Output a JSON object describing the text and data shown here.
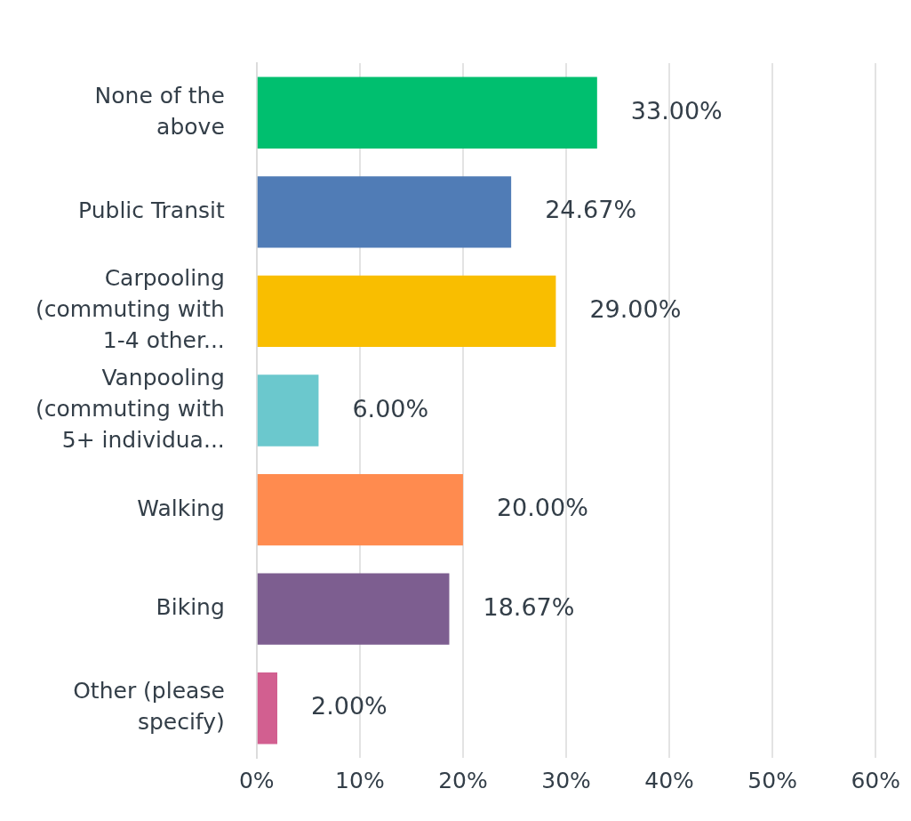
{
  "chart_data": {
    "type": "bar",
    "orientation": "horizontal",
    "categories": [
      "None of the above",
      "Public Transit",
      "Carpooling (commuting with 1-4 other...",
      "Vanpooling (commuting with 5+ individua...",
      "Walking",
      "Biking",
      "Other (please specify)"
    ],
    "values": [
      33,
      24.67,
      29,
      6,
      20,
      18.67,
      2
    ],
    "colors": [
      "#00bf6f",
      "#507cb6",
      "#f9be00",
      "#6bc8cd",
      "#ff8b4f",
      "#7d5e90",
      "#d25f90"
    ],
    "value_labels": [
      "33.00%",
      "24.67%",
      "29.00%",
      "6.00%",
      "20.00%",
      "18.67%",
      "2.00%"
    ],
    "xlim": [
      0,
      60
    ],
    "xticks": [
      {
        "value": 0,
        "label": "0%"
      },
      {
        "value": 10,
        "label": "10%"
      },
      {
        "value": 20,
        "label": "20%"
      },
      {
        "value": 30,
        "label": "30%"
      },
      {
        "value": 40,
        "label": "40%"
      },
      {
        "value": 50,
        "label": "50%"
      },
      {
        "value": 60,
        "label": "60%"
      }
    ],
    "grid": "x"
  }
}
